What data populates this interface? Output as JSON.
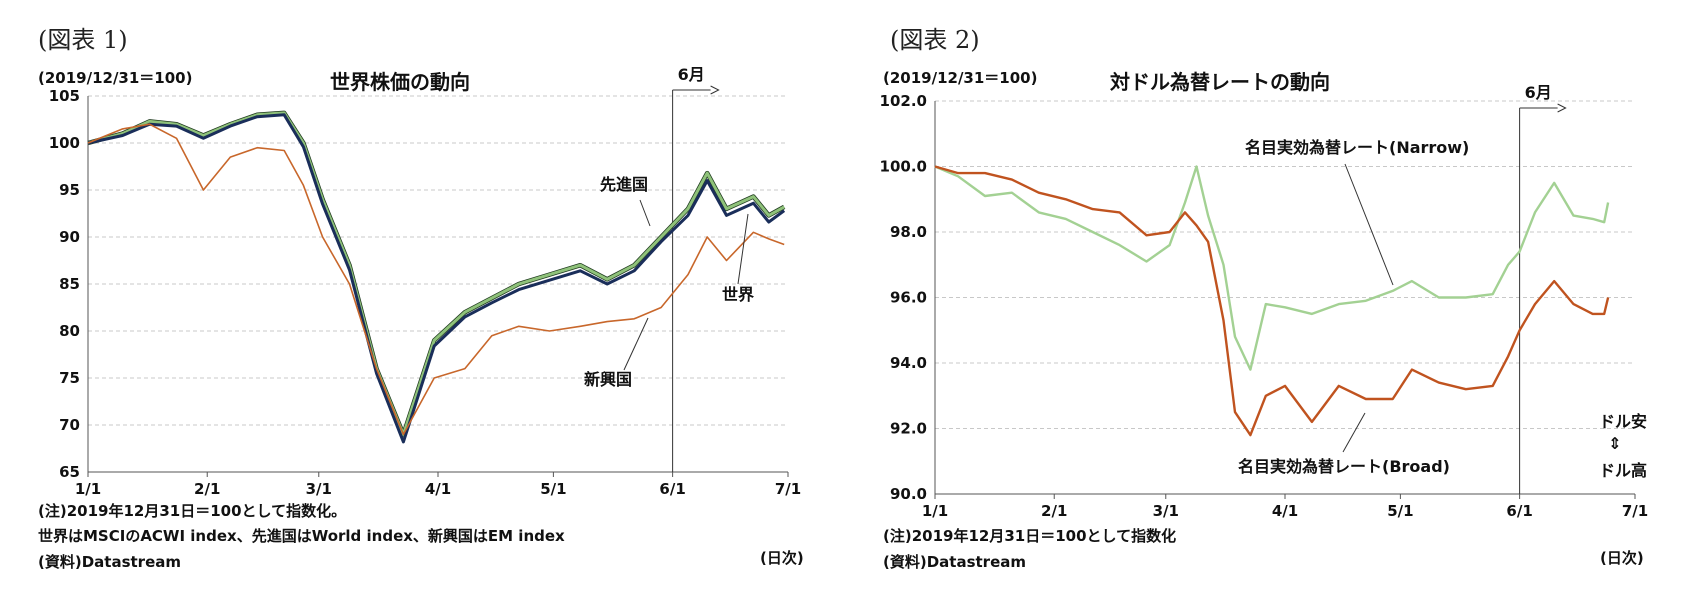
{
  "chart_data": [
    {
      "type": "line",
      "figure_label": "(図表 1)",
      "title": "世界株価の動向",
      "base_label": "(2019/12/31＝100)",
      "ylim": [
        65,
        105
      ],
      "yticks": [
        105,
        100,
        95,
        90,
        85,
        80,
        75,
        70,
        65
      ],
      "xticks": [
        "1/1",
        "2/1",
        "3/1",
        "4/1",
        "5/1",
        "6/1",
        "7/1"
      ],
      "x_unit": "(日次)",
      "grid": true,
      "marker": {
        "label": "6月",
        "at": "6/1"
      },
      "series": [
        {
          "name": "先進国",
          "color": "#8fc27a",
          "points": [
            [
              "1/1",
              100
            ],
            [
              "1/10",
              101
            ],
            [
              "1/17",
              102.3
            ],
            [
              "1/24",
              102
            ],
            [
              "1/31",
              100.8
            ],
            [
              "2/7",
              102
            ],
            [
              "2/14",
              103
            ],
            [
              "2/21",
              103.2
            ],
            [
              "2/26",
              100
            ],
            [
              "3/2",
              94
            ],
            [
              "3/9",
              87
            ],
            [
              "3/16",
              76
            ],
            [
              "3/23",
              69
            ],
            [
              "3/31",
              79
            ],
            [
              "4/8",
              82
            ],
            [
              "4/15",
              83.5
            ],
            [
              "4/22",
              85
            ],
            [
              "4/30",
              86
            ],
            [
              "5/8",
              87
            ],
            [
              "5/15",
              85.5
            ],
            [
              "5/22",
              87
            ],
            [
              "5/29",
              90
            ],
            [
              "6/5",
              93
            ],
            [
              "6/10",
              96.8
            ],
            [
              "6/15",
              93
            ],
            [
              "6/22",
              94.3
            ],
            [
              "6/26",
              92.3
            ],
            [
              "6/30",
              93.2
            ]
          ]
        },
        {
          "name": "世界",
          "color": "#1a2e5a",
          "points": [
            [
              "1/1",
              100
            ],
            [
              "1/10",
              100.8
            ],
            [
              "1/17",
              102
            ],
            [
              "1/24",
              101.8
            ],
            [
              "1/31",
              100.5
            ],
            [
              "2/7",
              101.8
            ],
            [
              "2/14",
              102.8
            ],
            [
              "2/21",
              103
            ],
            [
              "2/26",
              99.6
            ],
            [
              "3/2",
              93.5
            ],
            [
              "3/9",
              86.5
            ],
            [
              "3/16",
              75.5
            ],
            [
              "3/23",
              68.2
            ],
            [
              "3/31",
              78.4
            ],
            [
              "4/8",
              81.5
            ],
            [
              "4/15",
              83
            ],
            [
              "4/22",
              84.4
            ],
            [
              "4/30",
              85.4
            ],
            [
              "5/8",
              86.4
            ],
            [
              "5/15",
              85
            ],
            [
              "5/22",
              86.4
            ],
            [
              "5/29",
              89.5
            ],
            [
              "6/5",
              92.3
            ],
            [
              "6/10",
              96
            ],
            [
              "6/15",
              92.3
            ],
            [
              "6/22",
              93.6
            ],
            [
              "6/26",
              91.6
            ],
            [
              "6/30",
              92.8
            ]
          ]
        },
        {
          "name": "新興国",
          "color": "#c8672b",
          "points": [
            [
              "1/1",
              100
            ],
            [
              "1/10",
              101.5
            ],
            [
              "1/17",
              102
            ],
            [
              "1/24",
              100.5
            ],
            [
              "1/31",
              95
            ],
            [
              "2/7",
              98.5
            ],
            [
              "2/14",
              99.5
            ],
            [
              "2/21",
              99.2
            ],
            [
              "2/26",
              95.5
            ],
            [
              "3/2",
              90
            ],
            [
              "3/9",
              85
            ],
            [
              "3/16",
              76
            ],
            [
              "3/23",
              69
            ],
            [
              "3/31",
              75
            ],
            [
              "4/8",
              76
            ],
            [
              "4/15",
              79.5
            ],
            [
              "4/22",
              80.5
            ],
            [
              "4/30",
              80
            ],
            [
              "5/8",
              80.5
            ],
            [
              "5/15",
              81
            ],
            [
              "5/22",
              81.3
            ],
            [
              "5/29",
              82.5
            ],
            [
              "6/5",
              86
            ],
            [
              "6/10",
              90
            ],
            [
              "6/15",
              87.5
            ],
            [
              "6/22",
              90.5
            ],
            [
              "6/26",
              89.8
            ],
            [
              "6/30",
              89.2
            ]
          ]
        }
      ],
      "annotations": {
        "developed": "先進国",
        "world": "世界",
        "emerging": "新興国"
      },
      "notes": [
        "(注)2019年12月31日＝100として指数化。",
        "世界はMSCIのACWI index、先進国はWorld index、新興国はEM index",
        "(資料)Datastream"
      ]
    },
    {
      "type": "line",
      "figure_label": "(図表 2)",
      "title": "対ドル為替レートの動向",
      "base_label": "(2019/12/31＝100)",
      "ylim": [
        90,
        102
      ],
      "yticks": [
        "102.0",
        "100.0",
        "98.0",
        "96.0",
        "94.0",
        "92.0",
        "90.0"
      ],
      "xticks": [
        "1/1",
        "2/1",
        "3/1",
        "4/1",
        "5/1",
        "6/1",
        "7/1"
      ],
      "x_unit": "(日次)",
      "grid": true,
      "marker": {
        "label": "6月",
        "at": "6/1"
      },
      "series": [
        {
          "name": "名目実効為替レート(Narrow)",
          "color": "#a3d193",
          "points": [
            [
              "1/1",
              100
            ],
            [
              "1/7",
              99.7
            ],
            [
              "1/14",
              99.1
            ],
            [
              "1/21",
              99.2
            ],
            [
              "1/28",
              98.6
            ],
            [
              "2/4",
              98.4
            ],
            [
              "2/11",
              98
            ],
            [
              "2/18",
              97.6
            ],
            [
              "2/25",
              97.1
            ],
            [
              "3/2",
              97.6
            ],
            [
              "3/6",
              98.9
            ],
            [
              "3/9",
              100
            ],
            [
              "3/12",
              98.5
            ],
            [
              "3/16",
              97
            ],
            [
              "3/19",
              94.8
            ],
            [
              "3/23",
              93.8
            ],
            [
              "3/27",
              95.8
            ],
            [
              "4/1",
              95.7
            ],
            [
              "4/8",
              95.5
            ],
            [
              "4/15",
              95.8
            ],
            [
              "4/22",
              95.9
            ],
            [
              "4/29",
              96.2
            ],
            [
              "5/4",
              96.5
            ],
            [
              "5/11",
              96
            ],
            [
              "5/18",
              96
            ],
            [
              "5/25",
              96.1
            ],
            [
              "5/29",
              97
            ],
            [
              "6/1",
              97.4
            ],
            [
              "6/5",
              98.6
            ],
            [
              "6/10",
              99.5
            ],
            [
              "6/15",
              98.5
            ],
            [
              "6/20",
              98.4
            ],
            [
              "6/23",
              98.3
            ],
            [
              "6/24",
              98.9
            ]
          ]
        },
        {
          "name": "名目実効為替レート(Broad)",
          "color": "#c0531f",
          "points": [
            [
              "1/1",
              100
            ],
            [
              "1/7",
              99.8
            ],
            [
              "1/14",
              99.8
            ],
            [
              "1/21",
              99.6
            ],
            [
              "1/28",
              99.2
            ],
            [
              "2/4",
              99
            ],
            [
              "2/11",
              98.7
            ],
            [
              "2/18",
              98.6
            ],
            [
              "2/25",
              97.9
            ],
            [
              "3/2",
              98
            ],
            [
              "3/6",
              98.6
            ],
            [
              "3/9",
              98.2
            ],
            [
              "3/12",
              97.7
            ],
            [
              "3/16",
              95.3
            ],
            [
              "3/19",
              92.5
            ],
            [
              "3/23",
              91.8
            ],
            [
              "3/27",
              93
            ],
            [
              "4/1",
              93.3
            ],
            [
              "4/8",
              92.2
            ],
            [
              "4/15",
              93.3
            ],
            [
              "4/22",
              92.9
            ],
            [
              "4/29",
              92.9
            ],
            [
              "5/4",
              93.8
            ],
            [
              "5/11",
              93.4
            ],
            [
              "5/18",
              93.2
            ],
            [
              "5/25",
              93.3
            ],
            [
              "5/29",
              94.2
            ],
            [
              "6/1",
              95
            ],
            [
              "6/5",
              95.8
            ],
            [
              "6/10",
              96.5
            ],
            [
              "6/15",
              95.8
            ],
            [
              "6/20",
              95.5
            ],
            [
              "6/23",
              95.5
            ],
            [
              "6/24",
              96
            ]
          ]
        }
      ],
      "annotations": {
        "narrow": "名目実効為替レート(Narrow)",
        "broad": "名目実効為替レート(Broad)",
        "dollar_weak": "ドル安",
        "dollar_strong": "ドル高",
        "arrow_symbol": "⇕"
      },
      "notes": [
        "(注)2019年12月31日＝100として指数化",
        "(資料)Datastream"
      ]
    }
  ]
}
